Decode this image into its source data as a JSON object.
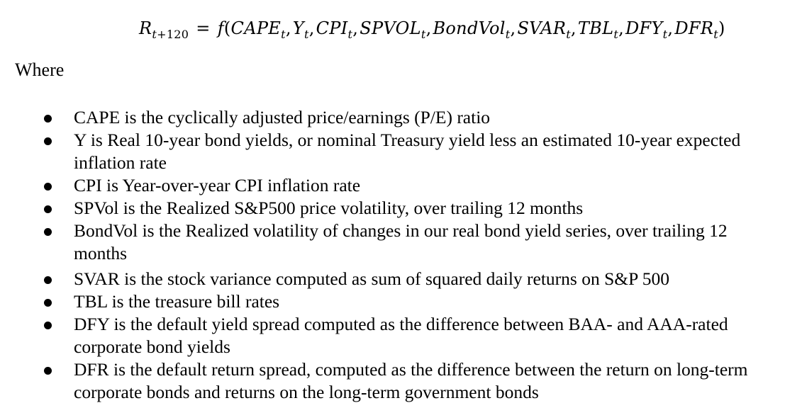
{
  "equation": {
    "lhs_var": "R",
    "lhs_sub_prefix": "t",
    "lhs_sub_suffix": "+120",
    "equals": "=",
    "func": "f",
    "open": "(",
    "close": ")",
    "args": [
      {
        "name": "CAPE",
        "sub": "t"
      },
      {
        "name": "Y",
        "sub": "t"
      },
      {
        "name": "CPI",
        "sub": "t"
      },
      {
        "name": "SPVOL",
        "sub": "t"
      },
      {
        "name": "BondVol",
        "sub": "t"
      },
      {
        "name": "SVAR",
        "sub": "t"
      },
      {
        "name": "TBL",
        "sub": "t"
      },
      {
        "name": "DFY",
        "sub": "t"
      },
      {
        "name": "DFR",
        "sub": "t"
      }
    ]
  },
  "where_label": "Where",
  "definitions": [
    "CAPE is the cyclically adjusted price/earnings (P/E) ratio",
    "Y is Real 10-year bond yields, or nominal Treasury yield less an estimated 10-year expected inflation rate",
    "CPI is Year-over-year CPI inflation rate",
    "SPVol is the Realized S&P500 price volatility, over trailing 12 months",
    "BondVol is the Realized volatility of changes in our real bond yield series, over trailing 12 months",
    "SVAR is the stock variance computed as sum of squared daily returns on S&P 500",
    "TBL is the treasure bill rates",
    "DFY is the default yield spread computed  as the difference between BAA- and AAA-rated corporate bond yields",
    "DFR is the default return spread, computed as the difference between the return on long-term corporate bonds and returns on the long-term government bonds"
  ]
}
